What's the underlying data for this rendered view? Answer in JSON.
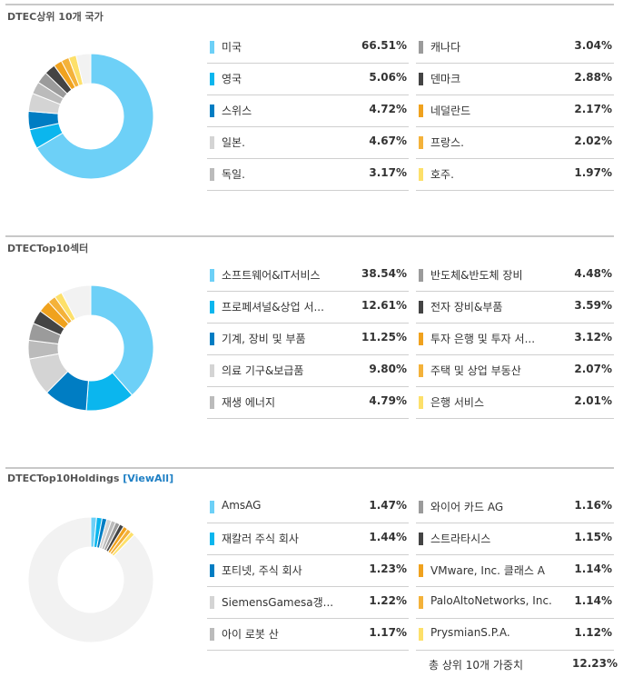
{
  "colors": [
    "#6dd0f7",
    "#0bb6ee",
    "#007dc3",
    "#d4d4d4",
    "#bbbbbb",
    "#9b9b9b",
    "#444444",
    "#f0a21e",
    "#f4b23a",
    "#fde06a"
  ],
  "holdings_colors": [
    "#6dd0f7",
    "#0bb6ee",
    "#007dc3",
    "#d4d4d4",
    "#bbbbbb",
    "#9b9b9b",
    "#444444",
    "#f0a21e",
    "#f4b23a",
    "#fde06a"
  ],
  "sections": [
    {
      "title": "DTEC상위 10개 국가",
      "view_all": "",
      "left_items": [
        {
          "label": "미국",
          "value": "66.51%"
        },
        {
          "label": "영국",
          "value": "5.06%"
        },
        {
          "label": "스위스",
          "value": "4.72%"
        },
        {
          "label": "일본.",
          "value": "4.67%"
        },
        {
          "label": "독일.",
          "value": "3.17%"
        }
      ],
      "right_items": [
        {
          "label": "캐나다",
          "value": "3.04%"
        },
        {
          "label": "덴마크",
          "value": "2.88%"
        },
        {
          "label": "네덜란드",
          "value": "2.17%"
        },
        {
          "label": "프랑스.",
          "value": "2.02%"
        },
        {
          "label": "호주.",
          "value": "1.97%"
        }
      ],
      "chart_data": {
        "type": "pie",
        "labels": [
          "미국",
          "영국",
          "스위스",
          "일본.",
          "독일.",
          "캐나다",
          "덴마크",
          "네덜란드",
          "프랑스.",
          "호주."
        ],
        "values": [
          66.51,
          5.06,
          4.72,
          4.67,
          3.17,
          3.04,
          2.88,
          2.17,
          2.02,
          1.97
        ],
        "total": 100
      }
    },
    {
      "title": "DTECTop10섹터",
      "view_all": "",
      "left_items": [
        {
          "label": "소프트웨어&IT서비스",
          "value": "38.54%"
        },
        {
          "label": "프로페셔널&상업 서...",
          "value": "12.61%"
        },
        {
          "label": "기계, 장비 및 부품",
          "value": "11.25%"
        },
        {
          "label": "의료 기구&보급품",
          "value": "9.80%"
        },
        {
          "label": "재생 에너지",
          "value": "4.79%"
        }
      ],
      "right_items": [
        {
          "label": "반도체&반도체 장비",
          "value": "4.48%"
        },
        {
          "label": "전자 장비&부품",
          "value": "3.59%"
        },
        {
          "label": "투자 은행 및 투자 서...",
          "value": "3.12%"
        },
        {
          "label": "주택 및 상업 부동산",
          "value": "2.07%"
        },
        {
          "label": "은행 서비스",
          "value": "2.01%"
        }
      ],
      "chart_data": {
        "type": "pie",
        "labels": [
          "소프트웨어&IT서비스",
          "프로페셔널&상업 서...",
          "기계, 장비 및 부품",
          "의료 기구&보급품",
          "재생 에너지",
          "반도체&반도체 장비",
          "전자 장비&부품",
          "투자 은행 및 투자 서...",
          "주택 및 상업 부동산",
          "은행 서비스"
        ],
        "values": [
          38.54,
          12.61,
          11.25,
          9.8,
          4.79,
          4.48,
          3.59,
          3.12,
          2.07,
          2.01
        ],
        "total": 100
      }
    },
    {
      "title": "DTECTop10Holdings",
      "view_all": "[ViewAll]",
      "left_items": [
        {
          "label": "AmsAG",
          "value": "1.47%"
        },
        {
          "label": "재칼러 주식 회사",
          "value": "1.44%"
        },
        {
          "label": "포티넷, 주식 회사",
          "value": "1.23%"
        },
        {
          "label": "SiemensGamesa갱...",
          "value": "1.22%"
        },
        {
          "label": "아이 로봇 산",
          "value": "1.17%"
        }
      ],
      "right_items": [
        {
          "label": "와이어 카드 AG",
          "value": "1.16%"
        },
        {
          "label": "스트라타시스",
          "value": "1.15%"
        },
        {
          "label": "VMware, Inc. 클래스 A",
          "value": "1.14%"
        },
        {
          "label": "PaloAltoNetworks, Inc.",
          "value": "1.14%"
        },
        {
          "label": "PrysmianS.P.A.",
          "value": "1.12%"
        }
      ],
      "total": {
        "label": "총 상위 10개 가중치",
        "value": "12.23%"
      },
      "chart_data": {
        "type": "pie",
        "labels": [
          "AmsAG",
          "재칼러 주식 회사",
          "포티넷, 주식 회사",
          "SiemensGamesa갱...",
          "아이 로봇 산",
          "와이어 카드 AG",
          "스트라타시스",
          "VMware, Inc. 클래스 A",
          "PaloAltoNetworks, Inc.",
          "PrysmianS.P.A."
        ],
        "values": [
          1.47,
          1.44,
          1.23,
          1.22,
          1.17,
          1.16,
          1.15,
          1.14,
          1.14,
          1.12
        ],
        "total": 100,
        "remainder_color": "#f2f2f2"
      }
    }
  ]
}
